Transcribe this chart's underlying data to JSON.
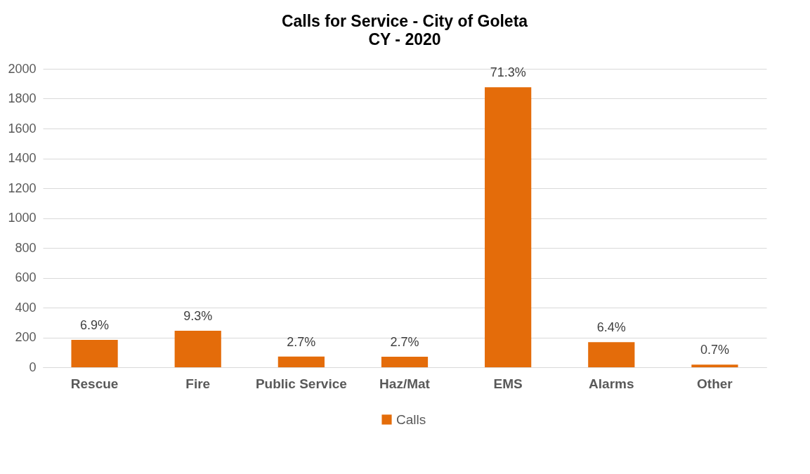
{
  "chart_data": {
    "type": "bar",
    "title": "Calls for Service - City of Goleta",
    "subtitle": "CY - 2020",
    "categories": [
      "Rescue",
      "Fire",
      "Public Service",
      "Haz/Mat",
      "EMS",
      "Alarms",
      "Other"
    ],
    "series": [
      {
        "name": "Calls",
        "color": "#e46c0a",
        "values": [
          183,
          245,
          72,
          71,
          1877,
          168,
          18
        ]
      }
    ],
    "annotations": [
      {
        "text": "6.9%",
        "x": "Rescue",
        "y": 183
      },
      {
        "text": "9.3%",
        "x": "Fire",
        "y": 245
      },
      {
        "text": "2.7%",
        "x": "Public Service",
        "y": 72
      },
      {
        "text": "2.7%",
        "x": "Haz/Mat",
        "y": 71
      },
      {
        "text": "71.3%",
        "x": "EMS",
        "y": 1877
      },
      {
        "text": "6.4%",
        "x": "Alarms",
        "y": 168
      },
      {
        "text": "0.7%",
        "x": "Other",
        "y": 18
      }
    ],
    "ylim": [
      0,
      2000
    ],
    "yticks": [
      0,
      200,
      400,
      600,
      800,
      {
        "value": 1000,
        "label": "1000"
      },
      {
        "value": 1200,
        "label": "1200"
      },
      {
        "value": 1400,
        "label": "1400"
      },
      {
        "value": 1600,
        "label": "1600"
      },
      {
        "value": 1800,
        "label": "1800"
      },
      {
        "value": 2000,
        "label": "2000"
      }
    ],
    "grid": "y",
    "legend": "bottom"
  }
}
